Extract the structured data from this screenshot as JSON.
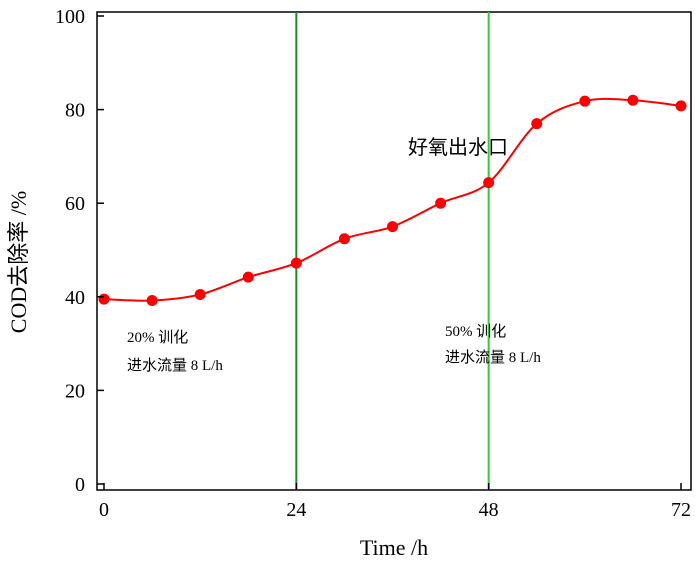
{
  "chart_data": {
    "type": "line",
    "title": "",
    "xlabel": "Time /h",
    "ylabel": "COD去除率 /%",
    "xlim": [
      0,
      72
    ],
    "ylim": [
      0,
      100
    ],
    "x_ticks": [
      0,
      24,
      48,
      72
    ],
    "y_ticks": [
      0,
      20,
      40,
      60,
      80,
      100
    ],
    "grid": false,
    "series": [
      {
        "name": "",
        "color": "#ff0000",
        "x": [
          0,
          6,
          12,
          18,
          24,
          30,
          36,
          42,
          48,
          54,
          60,
          66,
          72
        ],
        "y": [
          39.5,
          39.2,
          40.5,
          44.2,
          47.2,
          52.4,
          55.0,
          60.0,
          64.4,
          77.0,
          81.8,
          82.0,
          80.8
        ]
      }
    ],
    "vertical_lines": [
      {
        "x": 24,
        "color": "#1a8f1a"
      },
      {
        "x": 48,
        "color": "#33cc33"
      }
    ],
    "annotations": [
      {
        "id": "phase1",
        "lines": [
          "20% 训化",
          "进水流量 8 L/h"
        ]
      },
      {
        "id": "phase2",
        "lines": [
          "50% 训化",
          "进水流量 8 L/h"
        ]
      },
      {
        "id": "outlet",
        "lines": [
          "好氧出水口"
        ]
      }
    ]
  }
}
